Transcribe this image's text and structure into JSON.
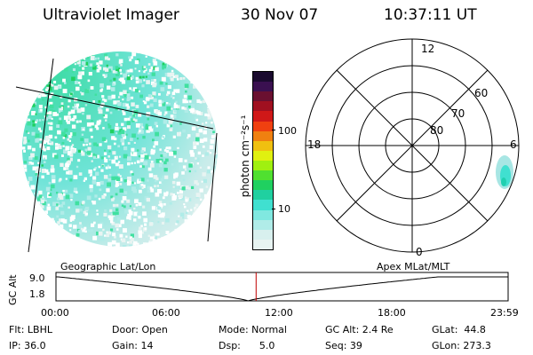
{
  "header": {
    "title": "Ultraviolet Imager",
    "date": "30 Nov 07",
    "time": "10:37:11 UT"
  },
  "colorbar": {
    "unit_label": "photon cm⁻²s⁻¹",
    "ticks": [
      "100",
      "10"
    ],
    "colors": [
      "#1a0a2e",
      "#3a1050",
      "#6a1030",
      "#a01020",
      "#d01818",
      "#f04010",
      "#f08010",
      "#f0c010",
      "#e0f010",
      "#a0f010",
      "#50e030",
      "#20d060",
      "#20d0a0",
      "#40e0d0",
      "#80e8e0",
      "#b0ece8",
      "#d8f0ee",
      "#e8f4f2"
    ]
  },
  "polar": {
    "mlt_labels": {
      "top": "12",
      "left": "18",
      "right": "6",
      "bottom": "0"
    },
    "lat_labels": [
      "60",
      "70",
      "80"
    ]
  },
  "timeline": {
    "y_axis_label": "GC Alt",
    "y_ticks": [
      "9.0",
      "1.8"
    ],
    "left_title": "Geographic Lat/Lon",
    "right_title": "Apex MLat/MLT",
    "x_ticks": [
      "00:00",
      "06:00",
      "12:00",
      "18:00",
      "23:59"
    ],
    "current_marker_time": "10:37"
  },
  "footer": {
    "rows": [
      [
        "Flt: LBHL",
        "Door: Open",
        "Mode: Normal",
        "GC Alt: 2.4 Re",
        "GLat:  44.8"
      ],
      [
        "IP: 36.0",
        "Gain: 14",
        "Dsp:      5.0",
        "Seq: 39",
        "GLon: 273.3"
      ]
    ]
  }
}
